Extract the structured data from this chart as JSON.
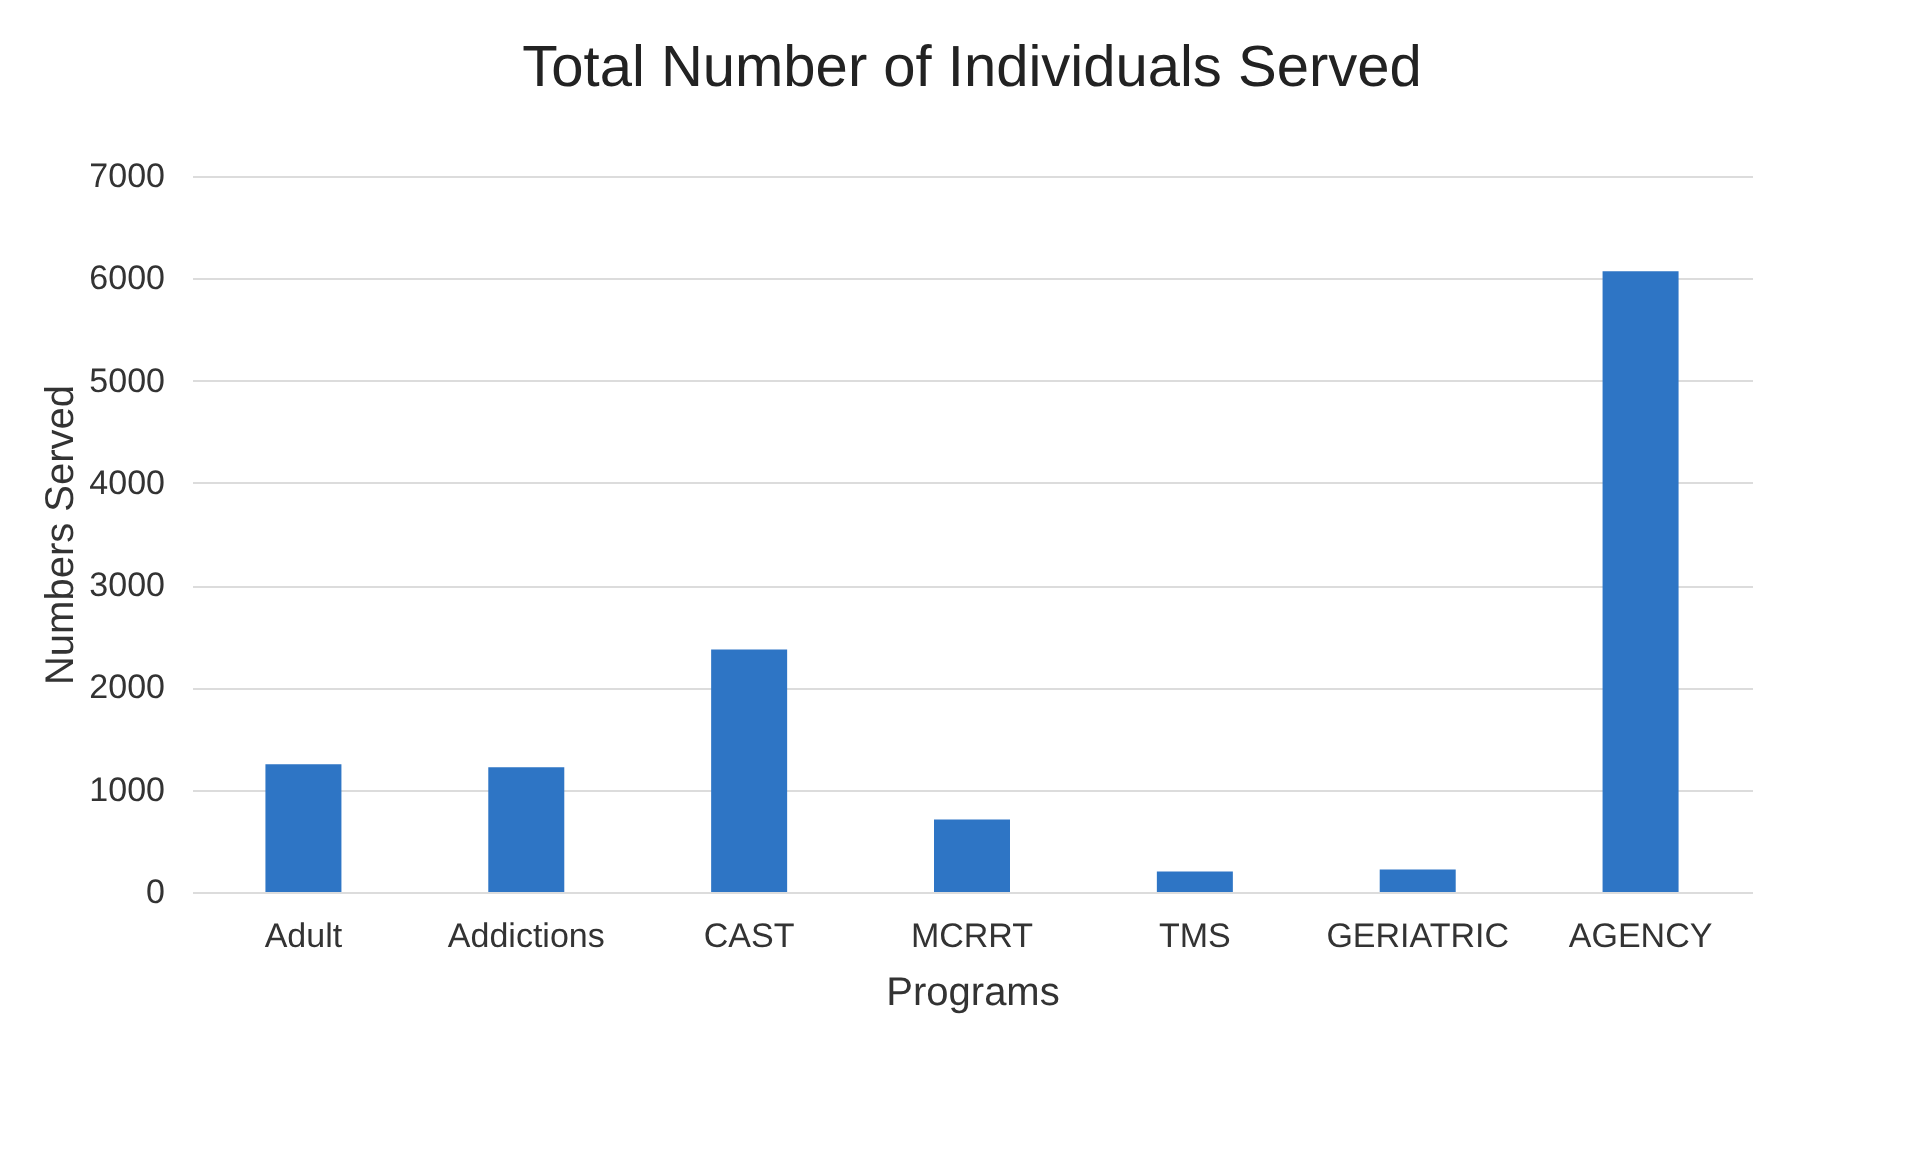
{
  "chart_data": {
    "type": "bar",
    "title": "Total Number of Individuals Served",
    "xlabel": "Programs",
    "ylabel": "Numbers Served",
    "categories": [
      "Adult",
      "Addictions",
      "CAST",
      "MCRRT",
      "TMS",
      "GERIATRIC",
      "AGENCY"
    ],
    "values": [
      1250,
      1220,
      2370,
      710,
      200,
      220,
      6070
    ],
    "color": "#2e75c5",
    "ylim": [
      0,
      7000
    ],
    "yticks": [
      0,
      1000,
      2000,
      3000,
      4000,
      5000,
      6000,
      7000
    ],
    "grid": "y"
  }
}
